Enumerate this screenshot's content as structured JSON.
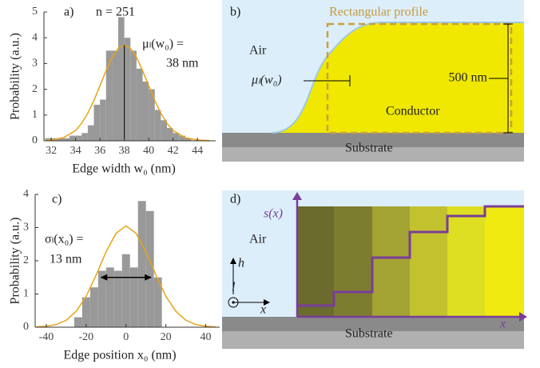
{
  "chart_data": [
    {
      "type": "histogram",
      "panel_label": "a)",
      "annotations": [
        "n = 251",
        "μₗ(w₀) =",
        "38 nm"
      ],
      "xlabel": "Edge width w₀ (nm)",
      "ylabel": "Probability (a.u.)",
      "color": "#999999",
      "bins": [
        31.5,
        32,
        32.5,
        33,
        33.5,
        34,
        34.5,
        35,
        35.5,
        36,
        36.5,
        37,
        37.5,
        38,
        38.5,
        39,
        39.5,
        40,
        40.5,
        41,
        41.5,
        42,
        42.5,
        43,
        43.5
      ],
      "values": [
        0.1,
        0.1,
        0.1,
        0.1,
        0.2,
        0.2,
        0.3,
        0.6,
        1.4,
        1.6,
        3.5,
        3.5,
        4.8,
        4.0,
        3.5,
        2.8,
        2.3,
        2.0,
        1.2,
        0.8,
        0.5,
        0.3,
        0.2,
        0.1
      ],
      "fit": {
        "color": "#e8a317",
        "x": [
          31.5,
          32,
          33,
          34,
          34.5,
          35,
          35.5,
          36,
          36.5,
          37,
          37.5,
          38,
          38.5,
          39,
          39.5,
          40,
          40.5,
          41,
          41.5,
          42,
          43,
          44,
          45
        ],
        "values": [
          0.01,
          0.03,
          0.12,
          0.4,
          0.68,
          1.07,
          1.56,
          2.14,
          2.72,
          3.24,
          3.59,
          3.72,
          3.59,
          3.24,
          2.72,
          2.14,
          1.56,
          1.07,
          0.68,
          0.4,
          0.12,
          0.03,
          0.01
        ]
      },
      "vline_x": 38,
      "vline_top": 3.72,
      "xlim": [
        31.4,
        45.5
      ],
      "xticks": [
        32,
        34,
        36,
        38,
        40,
        42,
        44
      ],
      "ylim": [
        0,
        5
      ],
      "yticks": [
        0,
        1,
        2,
        3,
        4,
        5
      ]
    },
    {
      "type": "histogram",
      "panel_label": "c)",
      "annotations": [
        "σₗ(x₀) =",
        "13 nm"
      ],
      "xlabel": "Edge position x₀ (nm)",
      "ylabel": "Probability (a.u.)",
      "color": "#999999",
      "bins": [
        -26,
        -22,
        -18,
        -14,
        -10,
        -6,
        -2,
        2,
        6,
        10,
        14,
        18
      ],
      "values": [
        0.3,
        0.9,
        1.2,
        1.7,
        1.8,
        1.7,
        2.2,
        1.8,
        3.8,
        3.5,
        1.5
      ],
      "fit": {
        "color": "#e8a317",
        "x": [
          -45,
          -40,
          -35,
          -30,
          -25,
          -20,
          -15,
          -10,
          -5,
          0,
          5,
          10,
          15,
          20,
          25,
          30,
          35,
          40,
          45
        ],
        "values": [
          0.01,
          0.03,
          0.08,
          0.21,
          0.48,
          0.93,
          1.57,
          2.27,
          2.83,
          3.05,
          2.83,
          2.27,
          1.57,
          0.93,
          0.48,
          0.21,
          0.08,
          0.03,
          0.01
        ]
      },
      "arrow_x": [
        -13,
        13
      ],
      "arrow_y": 1.5,
      "xlim": [
        -45.6,
        47
      ],
      "xticks": [
        -40,
        -20,
        0,
        20,
        40
      ],
      "ylim": [
        0,
        4
      ],
      "yticks": [
        0,
        1,
        2,
        3,
        4
      ]
    }
  ],
  "diagram_b": {
    "panel_label": "b)",
    "profile_label": "Rectangular profile",
    "air": "Air",
    "edge_label": "μₗ(w₀)",
    "height_label": "500 nm",
    "conductor": "Conductor",
    "substrate": "Substrate"
  },
  "diagram_d": {
    "panel_label": "d)",
    "function_label": "s(x)",
    "air": "Air",
    "axis_h": "h",
    "axis_l": "l",
    "axis_x": "x",
    "axis_x_main": "x",
    "substrate": "Substrate"
  }
}
